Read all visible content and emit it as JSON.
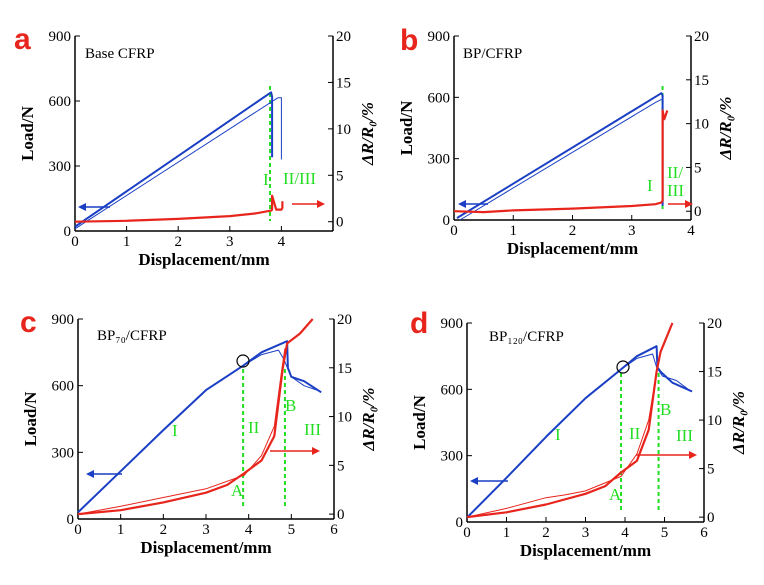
{
  "figure": {
    "colors": {
      "load": "#1a3fc4",
      "resistance": "#e8251c",
      "stage": "#22dd22"
    }
  },
  "chart_data": [
    {
      "panel": "a",
      "title": "Base CFRP",
      "type": "line",
      "xlabel": "Displacement/mm",
      "ylabel": "Load/N",
      "y2label": "ΔR/R₀/%",
      "xlim": [
        0,
        5
      ],
      "ylim": [
        0,
        900
      ],
      "y2lim": [
        -1,
        20
      ],
      "xticks": [
        "0",
        "1",
        "2",
        "3",
        "4"
      ],
      "yticks": [
        "0",
        "300",
        "600",
        "900"
      ],
      "y2ticks": [
        "0",
        "5",
        "10",
        "15",
        "20"
      ],
      "stage_labels": [
        "I",
        "II/III"
      ],
      "point_labels": [],
      "series": [
        {
          "axis": "left",
          "width": 2,
          "x": [
            0,
            3.8,
            3.82,
            3.82
          ],
          "y": [
            20,
            640,
            620,
            340
          ]
        },
        {
          "axis": "left",
          "width": 1,
          "x": [
            0,
            3.93,
            4.0,
            4.0
          ],
          "y": [
            10,
            615,
            615,
            330
          ]
        },
        {
          "axis": "right",
          "width": 2.2,
          "x": [
            0,
            1,
            2,
            3,
            3.5,
            3.8,
            3.82,
            3.82,
            3.9,
            4.0,
            4.02,
            4.02
          ],
          "y": [
            0,
            0.1,
            0.3,
            0.6,
            0.9,
            1.2,
            1.3,
            2.8,
            1.3,
            1.3,
            1.5,
            2.2
          ]
        }
      ]
    },
    {
      "panel": "b",
      "title": "BP/CFRP",
      "type": "line",
      "xlabel": "Displacement/mm",
      "ylabel": "Load/N",
      "y2label": "ΔR/R₀/%",
      "xlim": [
        0,
        4
      ],
      "ylim": [
        0,
        900
      ],
      "y2lim": [
        -1,
        20
      ],
      "xticks": [
        "0",
        "1",
        "2",
        "3",
        "4"
      ],
      "yticks": [
        "0",
        "300",
        "600",
        "900"
      ],
      "y2ticks": [
        "0",
        "5",
        "10",
        "15",
        "20"
      ],
      "stage_labels": [
        "I",
        "II/",
        "III"
      ],
      "point_labels": [],
      "series": [
        {
          "axis": "left",
          "width": 2,
          "x": [
            0.05,
            3.5,
            3.52,
            3.52
          ],
          "y": [
            10,
            620,
            610,
            70
          ]
        },
        {
          "axis": "left",
          "width": 1,
          "x": [
            0.1,
            3.4,
            3.5
          ],
          "y": [
            0,
            575,
            590
          ]
        },
        {
          "axis": "right",
          "width": 2.2,
          "x": [
            0,
            0.5,
            1,
            2,
            3,
            3.4,
            3.5,
            3.52,
            3.52,
            3.55,
            3.6
          ],
          "y": [
            0,
            -0.1,
            0.1,
            0.3,
            0.6,
            0.8,
            1.0,
            1.2,
            11.5,
            10.5,
            11.5
          ]
        }
      ]
    },
    {
      "panel": "c",
      "title": "BP₇₀/CFRP",
      "type": "line",
      "xlabel": "Displacement/mm",
      "ylabel": "Load/N",
      "y2label": "ΔR/R₀/%",
      "xlim": [
        0,
        6
      ],
      "ylim": [
        0,
        900
      ],
      "y2lim": [
        -0.5,
        20
      ],
      "xticks": [
        "0",
        "1",
        "2",
        "3",
        "4",
        "5",
        "6"
      ],
      "yticks": [
        "0",
        "300",
        "600",
        "900"
      ],
      "y2ticks": [
        "0",
        "5",
        "10",
        "15",
        "20"
      ],
      "stage_labels": [
        "I",
        "II",
        "III"
      ],
      "point_labels": [
        "A",
        "B"
      ],
      "series": [
        {
          "axis": "left",
          "width": 2,
          "x": [
            0,
            1,
            2,
            3,
            3.87,
            4.3,
            4.9,
            4.92,
            5.0,
            5.3,
            5.7
          ],
          "y": [
            30,
            215,
            400,
            580,
            690,
            750,
            800,
            680,
            640,
            620,
            570
          ]
        },
        {
          "axis": "left",
          "width": 1,
          "x": [
            3.87,
            4.3,
            4.7,
            4.82,
            5.0,
            5.3,
            5.6
          ],
          "y": [
            690,
            740,
            760,
            720,
            640,
            600,
            580
          ]
        },
        {
          "axis": "right",
          "width": 2.2,
          "x": [
            0,
            1,
            2,
            3,
            3.5,
            3.9,
            4.3,
            4.6,
            4.8,
            4.9,
            5.2,
            5.5
          ],
          "y": [
            0,
            0.4,
            1.2,
            2.2,
            3.0,
            4.2,
            5.5,
            8.0,
            15.0,
            17.5,
            18.5,
            20
          ]
        },
        {
          "axis": "right",
          "width": 1,
          "x": [
            0,
            1,
            2,
            3,
            3.9,
            4.3,
            4.6,
            4.75,
            4.85
          ],
          "y": [
            0,
            0.8,
            1.7,
            2.6,
            4.0,
            6.0,
            9.0,
            14.0,
            17.0
          ]
        }
      ]
    },
    {
      "panel": "d",
      "title": "BP₁₂₀/CFRP",
      "type": "line",
      "xlabel": "Displacement/mm",
      "ylabel": "Load/N",
      "y2label": "ΔR/R₀/%",
      "xlim": [
        0,
        6
      ],
      "ylim": [
        0,
        900
      ],
      "y2lim": [
        -0.5,
        20
      ],
      "xticks": [
        "0",
        "1",
        "2",
        "3",
        "4",
        "5",
        "6"
      ],
      "yticks": [
        "0",
        "300",
        "600",
        "900"
      ],
      "y2ticks": [
        "0",
        "5",
        "10",
        "15",
        "20"
      ],
      "stage_labels": [
        "I",
        "II",
        "III"
      ],
      "point_labels": [
        "A",
        "B"
      ],
      "series": [
        {
          "axis": "left",
          "width": 2,
          "x": [
            0,
            1,
            2,
            3,
            3.9,
            4.3,
            4.8,
            4.82,
            4.9,
            5.2,
            5.7
          ],
          "y": [
            20,
            200,
            385,
            560,
            690,
            750,
            795,
            700,
            680,
            630,
            590
          ]
        },
        {
          "axis": "left",
          "width": 1,
          "x": [
            3.9,
            4.3,
            4.7,
            4.8,
            4.95,
            5.3,
            5.6
          ],
          "y": [
            690,
            740,
            760,
            700,
            660,
            640,
            600
          ]
        },
        {
          "axis": "right",
          "width": 2.2,
          "x": [
            0,
            1,
            2,
            3,
            3.5,
            3.9,
            4.3,
            4.6,
            4.8,
            4.9,
            5.2
          ],
          "y": [
            0,
            0.5,
            1.3,
            2.4,
            3.2,
            4.6,
            5.8,
            9.0,
            15.0,
            17.0,
            20
          ]
        },
        {
          "axis": "right",
          "width": 1,
          "x": [
            0,
            1,
            2,
            2.5,
            3,
            3.9,
            4.3,
            4.6,
            4.8
          ],
          "y": [
            0,
            0.9,
            2.0,
            2.3,
            2.7,
            4.2,
            6.5,
            10.0,
            15.0
          ]
        }
      ]
    }
  ]
}
